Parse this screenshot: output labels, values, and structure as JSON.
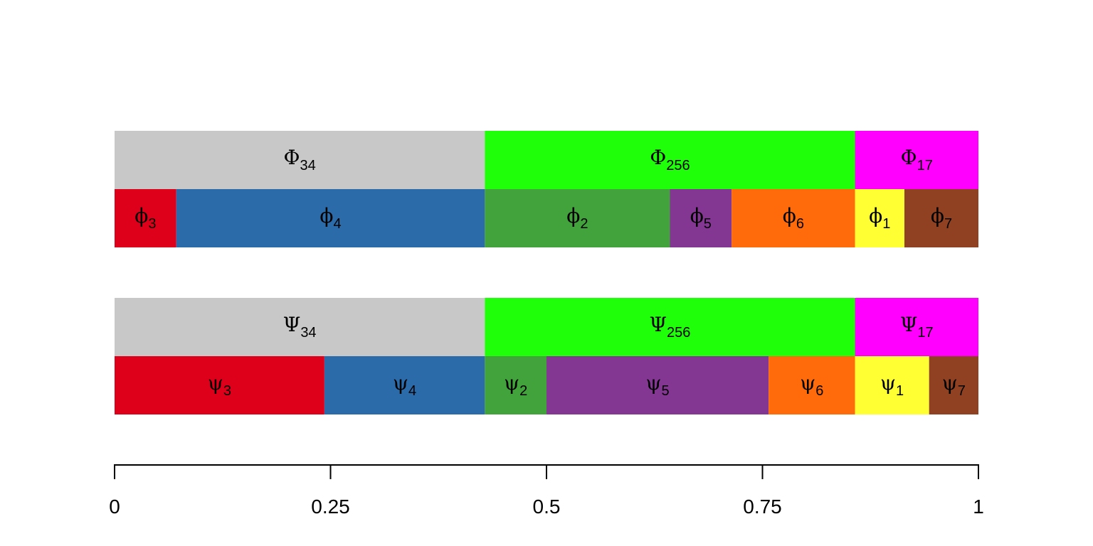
{
  "chart_data": {
    "type": "bar",
    "orientation": "horizontal",
    "stacked": true,
    "xlim": [
      0,
      1
    ],
    "axis_ticks": [
      "0",
      "0.25",
      "0.5",
      "0.75",
      "1"
    ],
    "axis_tick_values": [
      0,
      0.25,
      0.5,
      0.75,
      1
    ],
    "grid": false,
    "panels": [
      {
        "rows": [
          {
            "segments": [
              {
                "symbol": "Φ",
                "sub": "34",
                "start": 0.0,
                "end": 0.4286,
                "color": "#C8C8C8"
              },
              {
                "symbol": "Φ",
                "sub": "256",
                "start": 0.4286,
                "end": 0.8571,
                "color": "#1FFF0A"
              },
              {
                "symbol": "Φ",
                "sub": "17",
                "start": 0.8571,
                "end": 1.0,
                "color": "#FF00FF"
              }
            ]
          },
          {
            "segments": [
              {
                "symbol": "ϕ",
                "sub": "3",
                "start": 0.0,
                "end": 0.0714,
                "color": "#DE001A"
              },
              {
                "symbol": "ϕ",
                "sub": "4",
                "start": 0.0714,
                "end": 0.4286,
                "color": "#2C6BAA"
              },
              {
                "symbol": "ϕ",
                "sub": "2",
                "start": 0.4286,
                "end": 0.6429,
                "color": "#42A23B"
              },
              {
                "symbol": "ϕ",
                "sub": "5",
                "start": 0.6429,
                "end": 0.7143,
                "color": "#843693"
              },
              {
                "symbol": "ϕ",
                "sub": "6",
                "start": 0.7143,
                "end": 0.8571,
                "color": "#FF6B0A"
              },
              {
                "symbol": "ϕ",
                "sub": "1",
                "start": 0.8571,
                "end": 0.9143,
                "color": "#FFFF33"
              },
              {
                "symbol": "ϕ",
                "sub": "7",
                "start": 0.9143,
                "end": 1.0,
                "color": "#8F4122"
              }
            ]
          }
        ]
      },
      {
        "rows": [
          {
            "segments": [
              {
                "symbol": "Ψ",
                "sub": "34",
                "start": 0.0,
                "end": 0.4286,
                "color": "#C8C8C8"
              },
              {
                "symbol": "Ψ",
                "sub": "256",
                "start": 0.4286,
                "end": 0.8571,
                "color": "#1FFF0A"
              },
              {
                "symbol": "Ψ",
                "sub": "17",
                "start": 0.8571,
                "end": 1.0,
                "color": "#FF00FF"
              }
            ]
          },
          {
            "segments": [
              {
                "symbol": "ψ",
                "sub": "3",
                "start": 0.0,
                "end": 0.2429,
                "color": "#DE001A"
              },
              {
                "symbol": "ψ",
                "sub": "4",
                "start": 0.2429,
                "end": 0.4286,
                "color": "#2C6BAA"
              },
              {
                "symbol": "ψ",
                "sub": "2",
                "start": 0.4286,
                "end": 0.5,
                "color": "#42A23B"
              },
              {
                "symbol": "ψ",
                "sub": "5",
                "start": 0.5,
                "end": 0.7571,
                "color": "#843693"
              },
              {
                "symbol": "ψ",
                "sub": "6",
                "start": 0.7571,
                "end": 0.8571,
                "color": "#FF6B0A"
              },
              {
                "symbol": "ψ",
                "sub": "1",
                "start": 0.8571,
                "end": 0.9429,
                "color": "#FFFF33"
              },
              {
                "symbol": "ψ",
                "sub": "7",
                "start": 0.9429,
                "end": 1.0,
                "color": "#8F4122"
              }
            ]
          }
        ]
      }
    ]
  }
}
